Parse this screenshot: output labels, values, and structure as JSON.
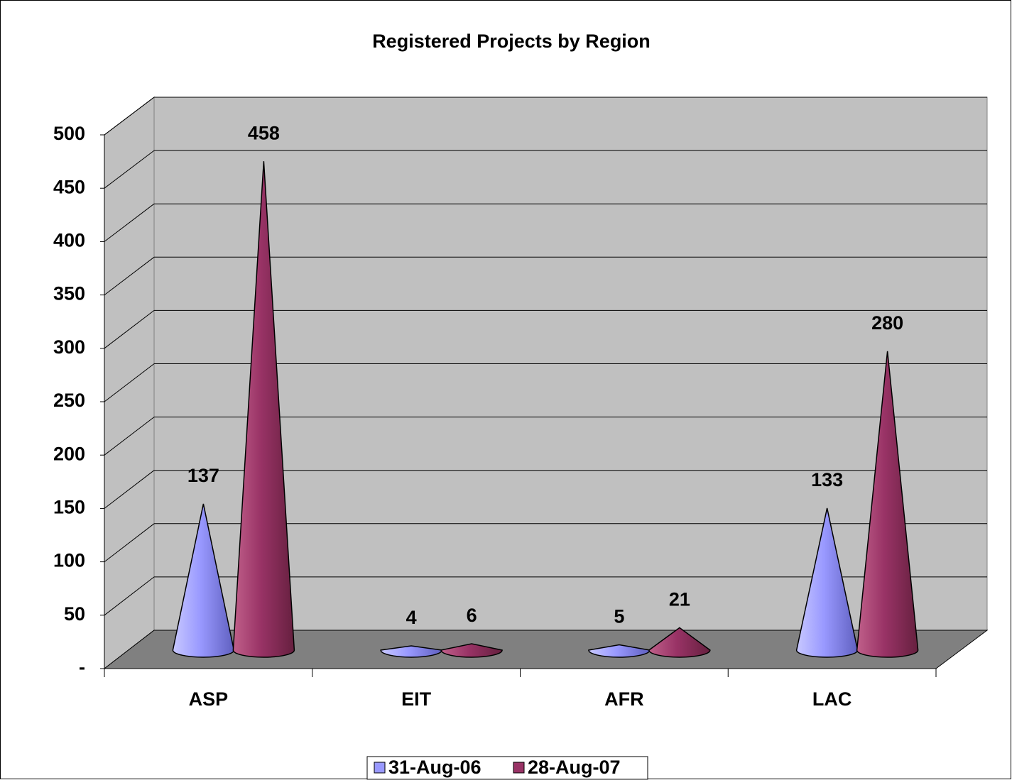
{
  "chart_data": {
    "type": "cone3d",
    "title": "Registered Projects by Region",
    "categories": [
      "ASP",
      "EIT",
      "AFR",
      "LAC"
    ],
    "series": [
      {
        "name": "31-Aug-06",
        "color": "#9999ff",
        "values": [
          137,
          4,
          5,
          133
        ]
      },
      {
        "name": "28-Aug-07",
        "color": "#993366",
        "values": [
          458,
          6,
          21,
          280
        ]
      }
    ],
    "ylim": [
      0,
      500
    ],
    "yticks": [
      {
        "value": 0,
        "label": "-"
      },
      50,
      100,
      150,
      200,
      250,
      300,
      350,
      400,
      450,
      500
    ],
    "grid": true,
    "legend": "bottom"
  }
}
